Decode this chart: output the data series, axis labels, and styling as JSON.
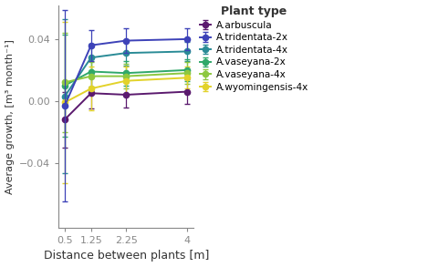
{
  "x": [
    0.5,
    1.25,
    2.25,
    4.0
  ],
  "series": {
    "A.arbuscula": {
      "y": [
        -0.012,
        0.005,
        0.004,
        0.006
      ],
      "yerr": [
        0.018,
        0.01,
        0.008,
        0.008
      ],
      "color": "#5B1A6E",
      "zorder": 4
    },
    "A.tridentata-2x": {
      "y": [
        -0.003,
        0.036,
        0.039,
        0.04
      ],
      "yerr": [
        0.062,
        0.01,
        0.008,
        0.007
      ],
      "color": "#3D42B8",
      "zorder": 5
    },
    "A.tridentata-4x": {
      "y": [
        0.003,
        0.028,
        0.031,
        0.032
      ],
      "yerr": [
        0.05,
        0.009,
        0.008,
        0.006
      ],
      "color": "#2A8B96",
      "zorder": 4
    },
    "A.vaseyana-2x": {
      "y": [
        0.01,
        0.019,
        0.018,
        0.02
      ],
      "yerr": [
        0.033,
        0.01,
        0.008,
        0.007
      ],
      "color": "#30A86A",
      "zorder": 4
    },
    "A.vaseyana-4x": {
      "y": [
        0.012,
        0.016,
        0.016,
        0.018
      ],
      "yerr": [
        0.032,
        0.009,
        0.008,
        0.007
      ],
      "color": "#8DC840",
      "zorder": 4
    },
    "A.wyomingensis-4x": {
      "y": [
        -0.001,
        0.008,
        0.013,
        0.015
      ],
      "yerr": [
        0.052,
        0.014,
        0.009,
        0.007
      ],
      "color": "#E2D22A",
      "zorder": 4
    }
  },
  "xlabel": "Distance between plants [m]",
  "ylabel": "Average growth, [m³ month⁻¹]",
  "legend_title": "Plant type",
  "xticks": [
    0.5,
    1.25,
    2.25,
    4.0
  ],
  "xtick_labels": [
    "0.5",
    "1.25",
    "2.25",
    "4"
  ],
  "ylim": [
    -0.082,
    0.062
  ],
  "yticks": [
    -0.04,
    0.0,
    0.04
  ],
  "background_color": "#ffffff",
  "panel_color": "#ffffff"
}
